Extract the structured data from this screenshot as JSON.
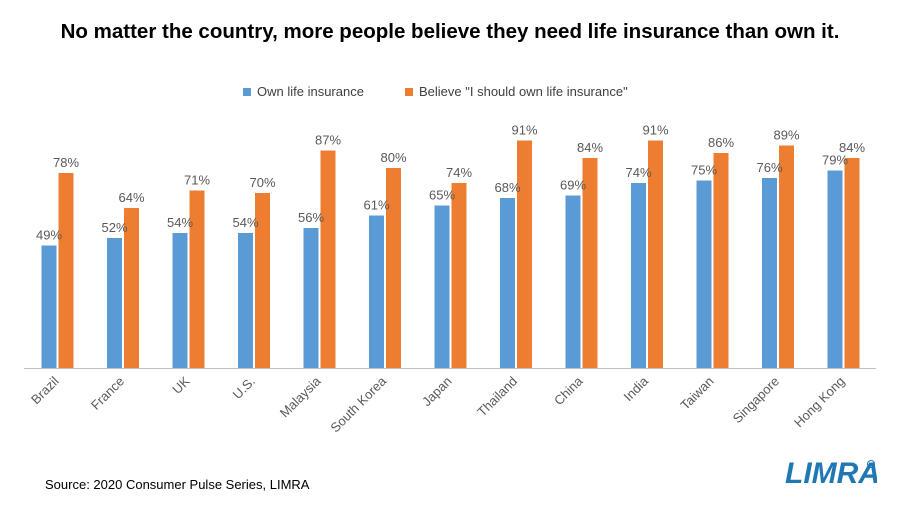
{
  "title": "No matter the country, more people believe they need life insurance than own it.",
  "source": "Source: 2020 Consumer Pulse Series, LIMRA",
  "logo_text": "LIMRA",
  "colors": {
    "own": "#5b9bd5",
    "believe": "#ed7d31",
    "axis": "#bfbfbf",
    "label": "#595959"
  },
  "chart_data": {
    "type": "bar",
    "title": "No matter the country, more people believe they need life insurance than own it.",
    "xlabel": "",
    "ylabel": "",
    "ylim": [
      0,
      100
    ],
    "grid": false,
    "legend_position": "top",
    "categories": [
      "Brazil",
      "France",
      "UK",
      "U.S.",
      "Malaysia",
      "South Korea",
      "Japan",
      "Thailand",
      "China",
      "India",
      "Taiwan",
      "Singapore",
      "Hong Kong"
    ],
    "series": [
      {
        "name": "Own life insurance",
        "values": [
          49,
          52,
          54,
          54,
          56,
          61,
          65,
          68,
          69,
          74,
          75,
          76,
          79
        ]
      },
      {
        "name": "Believe \"I should own life insurance\"",
        "values": [
          78,
          64,
          71,
          70,
          87,
          80,
          74,
          91,
          84,
          91,
          86,
          89,
          84
        ]
      }
    ],
    "data_label_suffix": "%"
  }
}
